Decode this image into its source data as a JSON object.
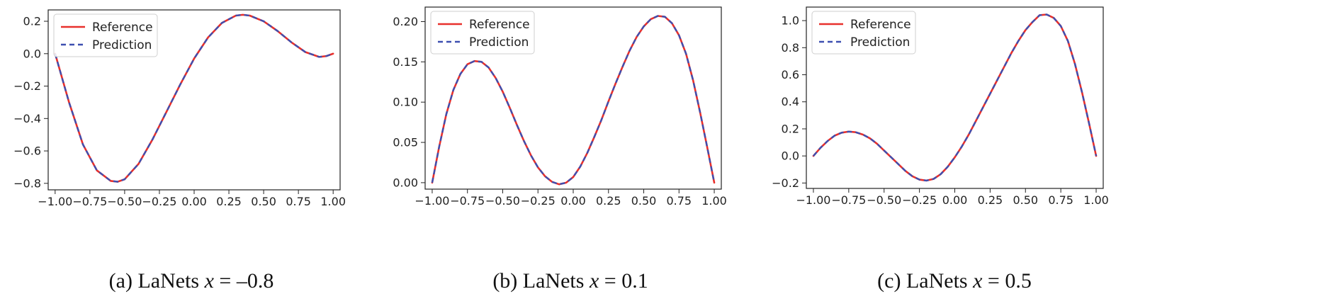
{
  "chart_data": [
    {
      "type": "line",
      "caption": {
        "prefix": "(a)  LaNets",
        "var": "x",
        "eq": " = ",
        "value": "–0.8"
      },
      "xlim": [
        -1.05,
        1.05
      ],
      "ylim": [
        -0.84,
        0.27
      ],
      "xticks": [
        -1.0,
        -0.75,
        -0.5,
        -0.25,
        0.0,
        0.25,
        0.5,
        0.75,
        1.0
      ],
      "xtick_labels": [
        "−1.00",
        "−0.75",
        "−0.50",
        "−0.25",
        "0.00",
        "0.25",
        "0.50",
        "0.75",
        "1.00"
      ],
      "yticks": [
        0.2,
        0.0,
        -0.2,
        -0.4,
        -0.6,
        -0.8
      ],
      "ytick_labels": [
        "0.2",
        "0.0",
        "−0.2",
        "−0.4",
        "−0.6",
        "−0.8"
      ],
      "legend": [
        "Reference",
        "Prediction"
      ],
      "legend_position": "top-left",
      "x": [
        -1.0,
        -0.9,
        -0.8,
        -0.7,
        -0.6,
        -0.55,
        -0.5,
        -0.4,
        -0.3,
        -0.2,
        -0.1,
        0.0,
        0.1,
        0.2,
        0.3,
        0.35,
        0.4,
        0.5,
        0.6,
        0.7,
        0.8,
        0.9,
        0.95,
        1.0
      ],
      "series": [
        {
          "name": "Reference",
          "color": "#e8302c",
          "values": [
            0.0,
            -0.3,
            -0.56,
            -0.72,
            -0.785,
            -0.79,
            -0.775,
            -0.68,
            -0.53,
            -0.36,
            -0.19,
            -0.03,
            0.1,
            0.19,
            0.235,
            0.24,
            0.235,
            0.2,
            0.14,
            0.07,
            0.01,
            -0.02,
            -0.015,
            0.0
          ]
        },
        {
          "name": "Prediction",
          "color": "#3d4fb0",
          "values": [
            0.0,
            -0.3,
            -0.56,
            -0.72,
            -0.785,
            -0.79,
            -0.775,
            -0.68,
            -0.53,
            -0.36,
            -0.19,
            -0.03,
            0.1,
            0.19,
            0.235,
            0.24,
            0.235,
            0.2,
            0.14,
            0.07,
            0.01,
            -0.02,
            -0.015,
            0.0
          ]
        }
      ]
    },
    {
      "type": "line",
      "caption": {
        "prefix": "(b) LaNets",
        "var": "x",
        "eq": " = ",
        "value": "0.1"
      },
      "xlim": [
        -1.05,
        1.05
      ],
      "ylim": [
        -0.008,
        0.218
      ],
      "xticks": [
        -1.0,
        -0.75,
        -0.5,
        -0.25,
        0.0,
        0.25,
        0.5,
        0.75,
        1.0
      ],
      "xtick_labels": [
        "−1.00",
        "−0.75",
        "−0.50",
        "−0.25",
        "0.00",
        "0.25",
        "0.50",
        "0.75",
        "1.00"
      ],
      "yticks": [
        0.2,
        0.15,
        0.1,
        0.05,
        0.0
      ],
      "ytick_labels": [
        "0.20",
        "0.15",
        "0.10",
        "0.05",
        "0.00"
      ],
      "legend": [
        "Reference",
        "Prediction"
      ],
      "legend_position": "top-left",
      "x": [
        -1.0,
        -0.95,
        -0.9,
        -0.85,
        -0.8,
        -0.75,
        -0.7,
        -0.65,
        -0.6,
        -0.55,
        -0.5,
        -0.45,
        -0.4,
        -0.35,
        -0.3,
        -0.25,
        -0.2,
        -0.15,
        -0.1,
        -0.05,
        0.0,
        0.05,
        0.1,
        0.15,
        0.2,
        0.25,
        0.3,
        0.35,
        0.4,
        0.45,
        0.5,
        0.55,
        0.6,
        0.65,
        0.7,
        0.75,
        0.8,
        0.85,
        0.9,
        0.95,
        1.0
      ],
      "series": [
        {
          "name": "Reference",
          "color": "#e8302c",
          "values": [
            0.0,
            0.045,
            0.085,
            0.115,
            0.135,
            0.147,
            0.151,
            0.15,
            0.143,
            0.13,
            0.113,
            0.093,
            0.072,
            0.052,
            0.034,
            0.019,
            0.008,
            0.001,
            -0.002,
            0.0,
            0.007,
            0.02,
            0.037,
            0.057,
            0.078,
            0.101,
            0.123,
            0.144,
            0.164,
            0.181,
            0.194,
            0.203,
            0.207,
            0.206,
            0.198,
            0.183,
            0.16,
            0.127,
            0.087,
            0.044,
            0.0
          ]
        },
        {
          "name": "Prediction",
          "color": "#3d4fb0",
          "values": [
            0.0,
            0.045,
            0.085,
            0.115,
            0.135,
            0.147,
            0.151,
            0.15,
            0.143,
            0.13,
            0.113,
            0.093,
            0.072,
            0.052,
            0.034,
            0.019,
            0.008,
            0.001,
            -0.002,
            0.0,
            0.007,
            0.02,
            0.037,
            0.057,
            0.078,
            0.101,
            0.123,
            0.144,
            0.164,
            0.181,
            0.194,
            0.203,
            0.207,
            0.206,
            0.198,
            0.183,
            0.16,
            0.127,
            0.087,
            0.044,
            0.0
          ]
        }
      ]
    },
    {
      "type": "line",
      "caption": {
        "prefix": "(c) LaNets",
        "var": "x",
        "eq": " = ",
        "value": "0.5"
      },
      "xlim": [
        -1.05,
        1.05
      ],
      "ylim": [
        -0.24,
        1.1
      ],
      "xticks": [
        -1.0,
        -0.75,
        -0.5,
        -0.25,
        0.0,
        0.25,
        0.5,
        0.75,
        1.0
      ],
      "xtick_labels": [
        "−1.00",
        "−0.75",
        "−0.50",
        "−0.25",
        "0.00",
        "0.25",
        "0.50",
        "0.75",
        "1.00"
      ],
      "yticks": [
        1.0,
        0.8,
        0.6,
        0.4,
        0.2,
        0.0,
        -0.2
      ],
      "ytick_labels": [
        "1.0",
        "0.8",
        "0.6",
        "0.4",
        "0.2",
        "0.0",
        "−0.2"
      ],
      "legend": [
        "Reference",
        "Prediction"
      ],
      "legend_position": "top-left",
      "x": [
        -1.0,
        -0.95,
        -0.9,
        -0.85,
        -0.8,
        -0.75,
        -0.7,
        -0.65,
        -0.6,
        -0.55,
        -0.5,
        -0.45,
        -0.4,
        -0.35,
        -0.3,
        -0.25,
        -0.2,
        -0.15,
        -0.1,
        -0.05,
        0.0,
        0.05,
        0.1,
        0.15,
        0.2,
        0.25,
        0.3,
        0.35,
        0.4,
        0.45,
        0.5,
        0.55,
        0.6,
        0.65,
        0.7,
        0.75,
        0.8,
        0.85,
        0.9,
        0.95,
        1.0
      ],
      "series": [
        {
          "name": "Reference",
          "color": "#e8302c",
          "values": [
            0.0,
            0.06,
            0.11,
            0.15,
            0.172,
            0.18,
            0.175,
            0.158,
            0.13,
            0.09,
            0.04,
            -0.01,
            -0.06,
            -0.11,
            -0.15,
            -0.175,
            -0.182,
            -0.17,
            -0.135,
            -0.08,
            -0.01,
            0.07,
            0.16,
            0.26,
            0.36,
            0.46,
            0.56,
            0.66,
            0.76,
            0.85,
            0.93,
            0.99,
            1.04,
            1.045,
            1.02,
            0.96,
            0.85,
            0.68,
            0.47,
            0.24,
            0.0
          ]
        },
        {
          "name": "Prediction",
          "color": "#3d4fb0",
          "values": [
            0.0,
            0.06,
            0.11,
            0.15,
            0.172,
            0.18,
            0.175,
            0.158,
            0.13,
            0.09,
            0.04,
            -0.01,
            -0.06,
            -0.11,
            -0.15,
            -0.175,
            -0.182,
            -0.17,
            -0.135,
            -0.08,
            -0.01,
            0.07,
            0.16,
            0.26,
            0.36,
            0.46,
            0.56,
            0.66,
            0.76,
            0.85,
            0.93,
            0.99,
            1.04,
            1.045,
            1.02,
            0.96,
            0.85,
            0.68,
            0.47,
            0.24,
            0.0
          ]
        }
      ]
    }
  ]
}
